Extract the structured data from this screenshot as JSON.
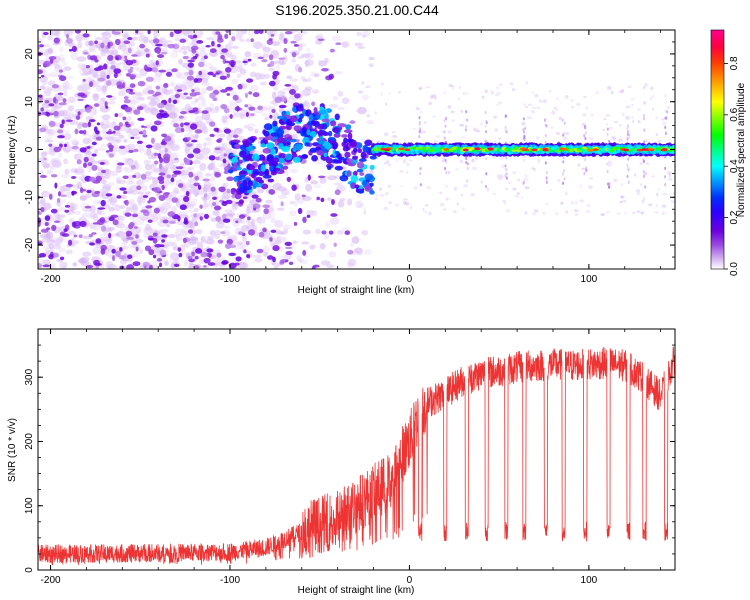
{
  "figure_title": "S196.2025.350.21.00.C44",
  "chart_data": [
    {
      "type": "heatmap",
      "title": "S196.2025.350.21.00.C44",
      "xlabel": "Height of straight line (km)",
      "ylabel": "Frequency (Hz)",
      "xlim": [
        -207,
        148
      ],
      "ylim": [
        -25,
        25
      ],
      "xticks": [
        -200,
        -100,
        0,
        100
      ],
      "yticks": [
        -20,
        -10,
        0,
        10,
        20
      ],
      "xtick_labels": [
        "-200",
        "-100",
        "0",
        "100"
      ],
      "ytick_labels": [
        "-20",
        "-10",
        "0",
        "10",
        "20"
      ],
      "colorbar": {
        "label": "Normalized spectral amplitude",
        "range": [
          0,
          0.93
        ],
        "ticks": [
          0.0,
          0.2,
          0.4,
          0.6,
          0.8
        ],
        "tick_labels": [
          "0.0",
          "0.2",
          "0.4",
          "0.6",
          "0.8"
        ],
        "colormap": [
          "#ffffff",
          "#d8b8f4",
          "#9b4be0",
          "#6a00e0",
          "#2a00ff",
          "#0030ff",
          "#00a0ff",
          "#00ffff",
          "#00ff80",
          "#00ff00",
          "#80ff00",
          "#ffff00",
          "#ffa000",
          "#ff4000",
          "#ff0040",
          "#ff0090"
        ]
      },
      "description_of_content": {
        "noise_region_x": [
          -207,
          -30
        ],
        "signal_band_center_hz": 0,
        "signal_band_halfwidth_hz": 1.5,
        "signal_start_x": -20,
        "signal_mean_amplitude": 0.55
      }
    },
    {
      "type": "line",
      "xlabel": "Height of straight line (km)",
      "ylabel": "SNR (10 * v/v)",
      "xlim": [
        -207,
        148
      ],
      "ylim": [
        0,
        375
      ],
      "xticks": [
        -200,
        -100,
        0,
        100
      ],
      "yticks": [
        0,
        100,
        200,
        300
      ],
      "xtick_labels": [
        "-200",
        "-100",
        "0",
        "100"
      ],
      "ytick_labels": [
        "0",
        "100",
        "200",
        "300"
      ],
      "series": [
        {
          "name": "SNR",
          "color": "#ee3333",
          "anchor_x": [
            -207,
            -150,
            -100,
            -80,
            -60,
            -40,
            -30,
            -20,
            -10,
            -5,
            0,
            5,
            10,
            20,
            30,
            40,
            50,
            60,
            70,
            80,
            90,
            100,
            110,
            120,
            130,
            140,
            148
          ],
          "anchor_y": [
            25,
            26,
            28,
            35,
            60,
            80,
            100,
            120,
            140,
            175,
            200,
            240,
            260,
            275,
            295,
            305,
            310,
            315,
            318,
            320,
            318,
            320,
            322,
            318,
            300,
            270,
            330
          ],
          "dropouts_x": [
            6,
            20,
            32,
            43,
            54,
            64,
            76,
            86,
            98,
            111,
            122,
            131,
            143
          ],
          "dropout_level": 60
        }
      ]
    }
  ]
}
